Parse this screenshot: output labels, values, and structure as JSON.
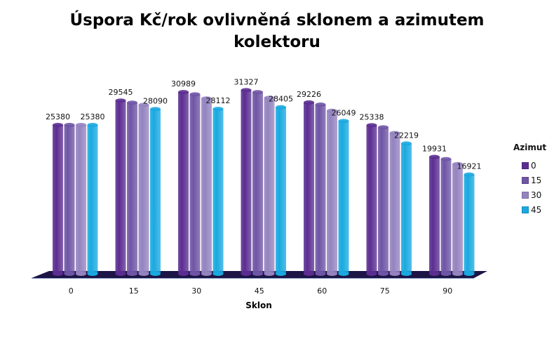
{
  "chart_data": {
    "type": "bar",
    "style": "3d-cylinder",
    "title": "Úspora Kč/rok ovlivněná sklonem a azimutem kolektoru",
    "title_lines": [
      "Úspora Kč/rok ovlivněná sklonem a azimutem",
      "kolektoru"
    ],
    "xlabel": "Sklon",
    "ylabel": "",
    "categories": [
      "0",
      "15",
      "30",
      "45",
      "60",
      "75",
      "90"
    ],
    "legend_title": "Azimut",
    "legend_position": "right",
    "grid": false,
    "ylim": [
      0,
      32000
    ],
    "series": [
      {
        "name": "0",
        "color": "#5b2d91",
        "values": [
          25380,
          29545,
          30989,
          31327,
          29226,
          25338,
          19931
        ],
        "labeled": true
      },
      {
        "name": "15",
        "color": "#6f55a5",
        "values": [
          25380,
          29180,
          30600,
          30970,
          28850,
          24980,
          19560
        ],
        "labeled": false
      },
      {
        "name": "30",
        "color": "#9483bf",
        "values": [
          25380,
          28800,
          29900,
          30000,
          27800,
          24000,
          18700
        ],
        "labeled": false
      },
      {
        "name": "45",
        "color": "#19a9e0",
        "values": [
          25380,
          28090,
          28112,
          28405,
          26049,
          22219,
          16921
        ],
        "labeled": true
      }
    ],
    "data_labels": {
      "0": [
        "25380",
        "29545",
        "30989",
        "31327",
        "29226",
        "25338",
        "19931"
      ],
      "45": [
        "25380",
        "28090",
        "28112",
        "28405",
        "26049",
        "22219",
        "16921"
      ]
    },
    "floor_color": "#1c1546"
  }
}
